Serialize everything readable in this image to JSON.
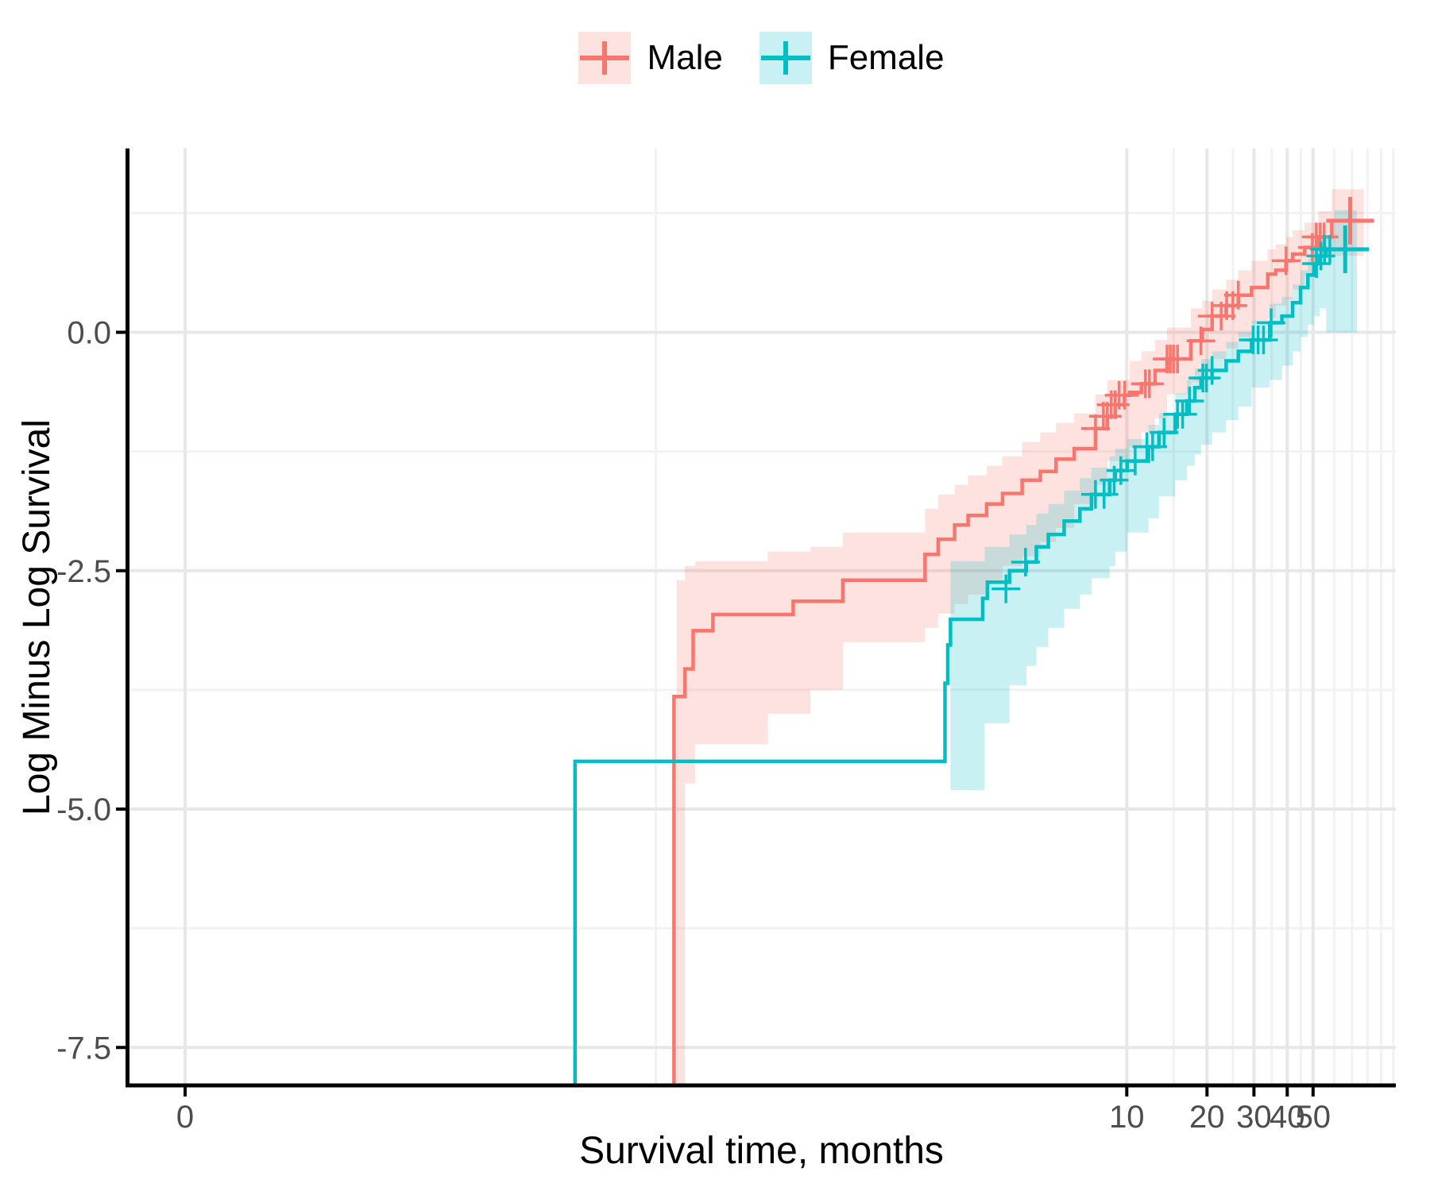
{
  "axes": {
    "x_title": "Survival time, months",
    "y_title": "Log Minus Log Survival",
    "x_ticks": [
      {
        "label": "0",
        "value": 0
      },
      {
        "label": "10",
        "value": 10
      },
      {
        "label": "20",
        "value": 20
      },
      {
        "label": "30",
        "value": 30
      },
      {
        "label": "40",
        "value": 40
      },
      {
        "label": "50",
        "value": 50
      }
    ],
    "y_ticks": [
      {
        "label": "0.0",
        "value": 0
      },
      {
        "label": "-2.5",
        "value": -2.5
      },
      {
        "label": "-5.0",
        "value": -5
      },
      {
        "label": "-7.5",
        "value": -7.5
      }
    ],
    "x_minor_months": [
      0.171,
      15,
      25,
      35,
      45,
      60,
      70,
      80,
      90,
      100
    ],
    "y_minor_values": [
      1.25,
      -1.25,
      -3.75,
      -6.25
    ]
  },
  "legend": {
    "items": [
      {
        "label": "Male",
        "color": "#F8766D"
      },
      {
        "label": "Female",
        "color": "#00BFC4"
      }
    ]
  },
  "colors": {
    "male": "#F8766D",
    "female": "#00BFC4",
    "grid_major": "#E7E7E7",
    "grid_minor": "#F2F2F2",
    "axis_line": "#000000",
    "tick_text": "#4D4D4D",
    "ribbon_alpha": 0.21
  },
  "chart_data": {
    "type": "line",
    "subtype": "kaplan-meier-log-minus-log",
    "title": "",
    "xlabel": "Survival time, months",
    "ylabel": "Log Minus Log Survival",
    "x_scale": {
      "type": "pseudo_log",
      "sigma": 0.00293,
      "shown_range": [
        0,
        100
      ]
    },
    "y_range_shown": [
      -7.9,
      1.93
    ],
    "grid": true,
    "legend_position": "top-center",
    "series": [
      {
        "name": "Male",
        "color": "#F8766D",
        "steps": [
          [
            0.2,
            -3.82
          ],
          [
            0.22,
            -3.53
          ],
          [
            0.236,
            -3.13
          ],
          [
            0.28,
            -2.96
          ],
          [
            0.56,
            -2.82
          ],
          [
            0.86,
            -2.6
          ],
          [
            1.75,
            -2.33
          ],
          [
            1.96,
            -2.17
          ],
          [
            2.26,
            -2.02
          ],
          [
            2.54,
            -1.92
          ],
          [
            2.98,
            -1.8
          ],
          [
            3.42,
            -1.69
          ],
          [
            4.05,
            -1.55
          ],
          [
            4.74,
            -1.46
          ],
          [
            5.43,
            -1.33
          ],
          [
            6.35,
            -1.22
          ],
          [
            7.63,
            -1.01
          ],
          [
            8.45,
            -0.88
          ],
          [
            9.05,
            -0.76
          ],
          [
            9.8,
            -0.66
          ],
          [
            10.24,
            -0.63
          ],
          [
            11.35,
            -0.54
          ],
          [
            12.77,
            -0.4
          ],
          [
            14.16,
            -0.28
          ],
          [
            17.39,
            -0.09
          ],
          [
            19.2,
            0.03
          ],
          [
            20.9,
            0.17
          ],
          [
            23.6,
            0.28
          ],
          [
            26.2,
            0.39
          ],
          [
            29.4,
            0.47
          ],
          [
            33.8,
            0.61
          ],
          [
            36.2,
            0.65
          ],
          [
            39.6,
            0.75
          ],
          [
            41.9,
            0.82
          ],
          [
            46.5,
            0.89
          ],
          [
            52.3,
            1.0
          ],
          [
            58.8,
            1.17
          ],
          [
            77.5,
            1.17
          ]
        ],
        "ribbon": [
          [
            0.205,
            -7.9,
            -2.6
          ],
          [
            0.22,
            -7.9,
            -2.45
          ],
          [
            0.24,
            -4.73,
            -2.4
          ],
          [
            0.45,
            -4.32,
            -2.3
          ],
          [
            0.65,
            -4.0,
            -2.25
          ],
          [
            0.86,
            -3.75,
            -2.1
          ],
          [
            1.75,
            -3.25,
            -1.85
          ],
          [
            1.96,
            -3.1,
            -1.7
          ],
          [
            2.26,
            -2.95,
            -1.6
          ],
          [
            2.54,
            -2.85,
            -1.5
          ],
          [
            2.98,
            -2.75,
            -1.4
          ],
          [
            3.42,
            -2.6,
            -1.3
          ],
          [
            4.05,
            -2.45,
            -1.15
          ],
          [
            4.74,
            -2.35,
            -1.05
          ],
          [
            5.43,
            -2.2,
            -0.95
          ],
          [
            6.35,
            -2.05,
            -0.85
          ],
          [
            7.63,
            -1.8,
            -0.65
          ],
          [
            8.45,
            -1.6,
            -0.5
          ],
          [
            10.24,
            -1.35,
            -0.3
          ],
          [
            11.35,
            -1.2,
            -0.2
          ],
          [
            12.77,
            -1.05,
            -0.08
          ],
          [
            14.16,
            -0.9,
            0.05
          ],
          [
            17.39,
            -0.65,
            0.25
          ],
          [
            19.2,
            -0.52,
            0.33
          ],
          [
            20.9,
            -0.4,
            0.45
          ],
          [
            23.6,
            -0.28,
            0.55
          ],
          [
            26.2,
            -0.17,
            0.65
          ],
          [
            29.4,
            -0.05,
            0.75
          ],
          [
            33.8,
            0.1,
            0.87
          ],
          [
            36.2,
            0.15,
            0.92
          ],
          [
            39.6,
            0.28,
            1.0
          ],
          [
            41.9,
            0.35,
            1.07
          ],
          [
            46.5,
            0.45,
            1.15
          ],
          [
            52.3,
            0.58,
            1.27
          ],
          [
            58.8,
            0.8,
            1.5
          ],
          [
            77.5,
            0.8,
            1.5
          ]
        ],
        "censors": [
          [
            7.63,
            -1.01
          ],
          [
            8.17,
            -0.88
          ],
          [
            8.45,
            -0.88
          ],
          [
            8.74,
            -0.76
          ],
          [
            9.05,
            -0.76
          ],
          [
            9.36,
            -0.66
          ],
          [
            9.82,
            -0.66
          ],
          [
            11.75,
            -0.54
          ],
          [
            12.16,
            -0.54
          ],
          [
            14.16,
            -0.28
          ],
          [
            14.56,
            -0.28
          ],
          [
            14.97,
            -0.28
          ],
          [
            15.5,
            -0.28
          ],
          [
            18.97,
            -0.09
          ],
          [
            20.9,
            0.17
          ],
          [
            22.6,
            0.17
          ],
          [
            23.7,
            0.28
          ],
          [
            25.0,
            0.28
          ],
          [
            26.2,
            0.39
          ],
          [
            39.6,
            0.75
          ],
          [
            49.7,
            0.89
          ],
          [
            51.4,
            1.0
          ],
          [
            53.2,
            1.0
          ],
          [
            55.0,
            1.0
          ]
        ],
        "terminal_censor": [
          68.9,
          1.17
        ]
      },
      {
        "name": "Female",
        "color": "#00BFC4",
        "steps": [
          [
            0.085,
            -4.5
          ],
          [
            2.08,
            -3.68
          ],
          [
            2.13,
            -3.28
          ],
          [
            2.18,
            -3.01
          ],
          [
            2.88,
            -2.79
          ],
          [
            3.0,
            -2.62
          ],
          [
            3.63,
            -2.5
          ],
          [
            4.2,
            -2.41
          ],
          [
            4.58,
            -2.25
          ],
          [
            5.08,
            -2.12
          ],
          [
            5.82,
            -1.98
          ],
          [
            6.67,
            -1.85
          ],
          [
            7.37,
            -1.7
          ],
          [
            8.62,
            -1.55
          ],
          [
            9.05,
            -1.45
          ],
          [
            10.03,
            -1.35
          ],
          [
            12.06,
            -1.2
          ],
          [
            13.2,
            -1.05
          ],
          [
            15.2,
            -0.86
          ],
          [
            16.8,
            -0.72
          ],
          [
            18.0,
            -0.58
          ],
          [
            19.0,
            -0.48
          ],
          [
            20.9,
            -0.4
          ],
          [
            23.6,
            -0.3
          ],
          [
            26.2,
            -0.2
          ],
          [
            29.4,
            -0.08
          ],
          [
            34.4,
            0.1
          ],
          [
            38.2,
            0.17
          ],
          [
            41.9,
            0.31
          ],
          [
            44.9,
            0.47
          ],
          [
            47.8,
            0.6
          ],
          [
            50.4,
            0.72
          ],
          [
            52.9,
            0.8
          ],
          [
            56.0,
            0.87
          ],
          [
            73.0,
            0.87
          ]
        ],
        "ribbon": [
          [
            2.18,
            -7.0,
            -2.4
          ],
          [
            2.93,
            -4.8,
            -2.25
          ],
          [
            3.63,
            -4.1,
            -2.12
          ],
          [
            4.2,
            -3.7,
            -2.02
          ],
          [
            4.58,
            -3.5,
            -1.9
          ],
          [
            5.08,
            -3.3,
            -1.8
          ],
          [
            5.82,
            -3.1,
            -1.66
          ],
          [
            6.67,
            -2.9,
            -1.53
          ],
          [
            7.37,
            -2.75,
            -1.42
          ],
          [
            8.62,
            -2.58,
            -1.3
          ],
          [
            9.05,
            -2.45,
            -1.22
          ],
          [
            10.03,
            -2.3,
            -1.12
          ],
          [
            12.06,
            -2.1,
            -0.97
          ],
          [
            13.2,
            -1.95,
            -0.85
          ],
          [
            15.2,
            -1.72,
            -0.64
          ],
          [
            16.8,
            -1.55,
            -0.5
          ],
          [
            18.0,
            -1.4,
            -0.38
          ],
          [
            19.0,
            -1.28,
            -0.28
          ],
          [
            20.9,
            -1.18,
            -0.2
          ],
          [
            23.6,
            -1.05,
            -0.1
          ],
          [
            26.2,
            -0.92,
            0.0
          ],
          [
            29.4,
            -0.78,
            0.12
          ],
          [
            34.4,
            -0.58,
            0.3
          ],
          [
            38.2,
            -0.5,
            0.37
          ],
          [
            41.9,
            -0.35,
            0.5
          ],
          [
            44.9,
            -0.2,
            0.65
          ],
          [
            47.8,
            -0.05,
            0.77
          ],
          [
            50.4,
            0.08,
            0.88
          ],
          [
            52.9,
            0.17,
            0.96
          ],
          [
            56.0,
            0.25,
            1.02
          ],
          [
            60.1,
            0.0,
            1.28
          ],
          [
            73.0,
            0.0,
            1.28
          ]
        ],
        "censors": [
          [
            3.52,
            -2.69
          ],
          [
            4.17,
            -2.41
          ],
          [
            7.63,
            -1.7
          ],
          [
            8.22,
            -1.7
          ],
          [
            8.97,
            -1.55
          ],
          [
            9.5,
            -1.45
          ],
          [
            10.75,
            -1.35
          ],
          [
            11.9,
            -1.2
          ],
          [
            12.5,
            -1.2
          ],
          [
            13.8,
            -1.05
          ],
          [
            15.5,
            -0.86
          ],
          [
            16.2,
            -0.86
          ],
          [
            17.2,
            -0.72
          ],
          [
            19.3,
            -0.48
          ],
          [
            19.9,
            -0.48
          ],
          [
            20.9,
            -0.4
          ],
          [
            29.8,
            -0.08
          ],
          [
            31.1,
            -0.08
          ],
          [
            32.6,
            -0.08
          ],
          [
            34.8,
            0.1
          ],
          [
            51.5,
            0.72
          ],
          [
            53.5,
            0.8
          ],
          [
            55.2,
            0.87
          ],
          [
            57.8,
            0.87
          ]
        ],
        "terminal_censor": [
          66.0,
          0.87
        ]
      }
    ]
  }
}
